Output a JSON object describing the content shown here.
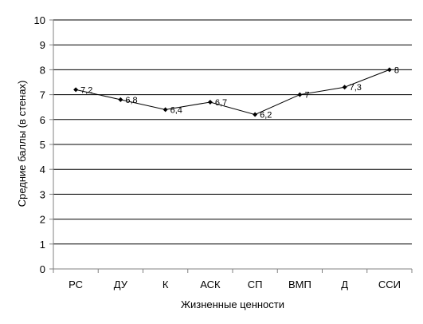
{
  "chart_data": {
    "type": "line",
    "categories": [
      "РС",
      "ДУ",
      "К",
      "АСК",
      "СП",
      "ВМП",
      "Д",
      "ССИ"
    ],
    "series": [
      {
        "values": [
          7.2,
          6.8,
          6.4,
          6.7,
          6.2,
          7,
          7.3,
          8
        ]
      }
    ],
    "data_labels": [
      "7,2",
      "6,8",
      "6,4",
      "6,7",
      "6,2",
      "7",
      "7,3",
      "8"
    ],
    "y_ticks": [
      "0",
      "1",
      "2",
      "3",
      "4",
      "5",
      "6",
      "7",
      "8",
      "9",
      "10"
    ],
    "xlabel": "Жизненные ценности",
    "ylabel": "Средние баллы (в стенах)",
    "ylim": [
      0,
      10
    ],
    "grid": true,
    "colors": {
      "line": "#000000",
      "grid": "#000000",
      "axis": "#808080"
    }
  }
}
